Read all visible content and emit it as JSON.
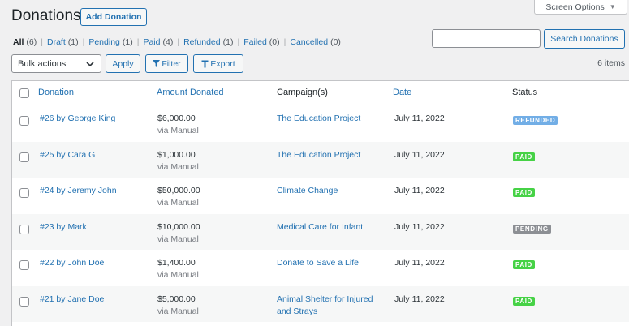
{
  "colors": {
    "accent": "#2271b1",
    "status": {
      "refunded": "#72aee6",
      "paid": "#46d246",
      "pending": "#8c8f94"
    }
  },
  "screen_options": {
    "label": "Screen Options",
    "icon": "caret-down-icon"
  },
  "header": {
    "title": "Donations",
    "add_button": "Add Donation"
  },
  "filters": [
    {
      "label": "All",
      "count": "(6)",
      "current": true
    },
    {
      "label": "Draft",
      "count": "(1)"
    },
    {
      "label": "Pending",
      "count": "(1)"
    },
    {
      "label": "Paid",
      "count": "(4)"
    },
    {
      "label": "Refunded",
      "count": "(1)"
    },
    {
      "label": "Failed",
      "count": "(0)"
    },
    {
      "label": "Cancelled",
      "count": "(0)"
    }
  ],
  "search": {
    "value": "",
    "button": "Search Donations"
  },
  "toolbar": {
    "bulk_actions": "Bulk actions",
    "apply": "Apply",
    "filter": "Filter",
    "export": "Export",
    "items_count": "6 items"
  },
  "table": {
    "columns": {
      "donation": "Donation",
      "amount": "Amount Donated",
      "campaign": "Campaign(s)",
      "date": "Date",
      "status": "Status"
    },
    "rows": [
      {
        "donation": "#26 by George King",
        "amount": "$6,000.00",
        "via": "via Manual",
        "campaign": "The Education Project",
        "date": "July 11, 2022",
        "status": "REFUNDED",
        "status_key": "refunded"
      },
      {
        "donation": "#25 by Cara G",
        "amount": "$1,000.00",
        "via": "via Manual",
        "campaign": "The Education Project",
        "date": "July 11, 2022",
        "status": "PAID",
        "status_key": "paid"
      },
      {
        "donation": "#24 by Jeremy John",
        "amount": "$50,000.00",
        "via": "via Manual",
        "campaign": "Climate Change",
        "date": "July 11, 2022",
        "status": "PAID",
        "status_key": "paid"
      },
      {
        "donation": "#23 by Mark",
        "amount": "$10,000.00",
        "via": "via Manual",
        "campaign": "Medical Care for Infant",
        "date": "July 11, 2022",
        "status": "PENDING",
        "status_key": "pending"
      },
      {
        "donation": "#22 by John Doe",
        "amount": "$1,400.00",
        "via": "via Manual",
        "campaign": "Donate to Save a Life",
        "date": "July 11, 2022",
        "status": "PAID",
        "status_key": "paid"
      },
      {
        "donation": "#21 by Jane Doe",
        "amount": "$5,000.00",
        "via": "via Manual",
        "campaign": "Animal Shelter for Injured and Strays",
        "date": "July 11, 2022",
        "status": "PAID",
        "status_key": "paid"
      }
    ]
  }
}
